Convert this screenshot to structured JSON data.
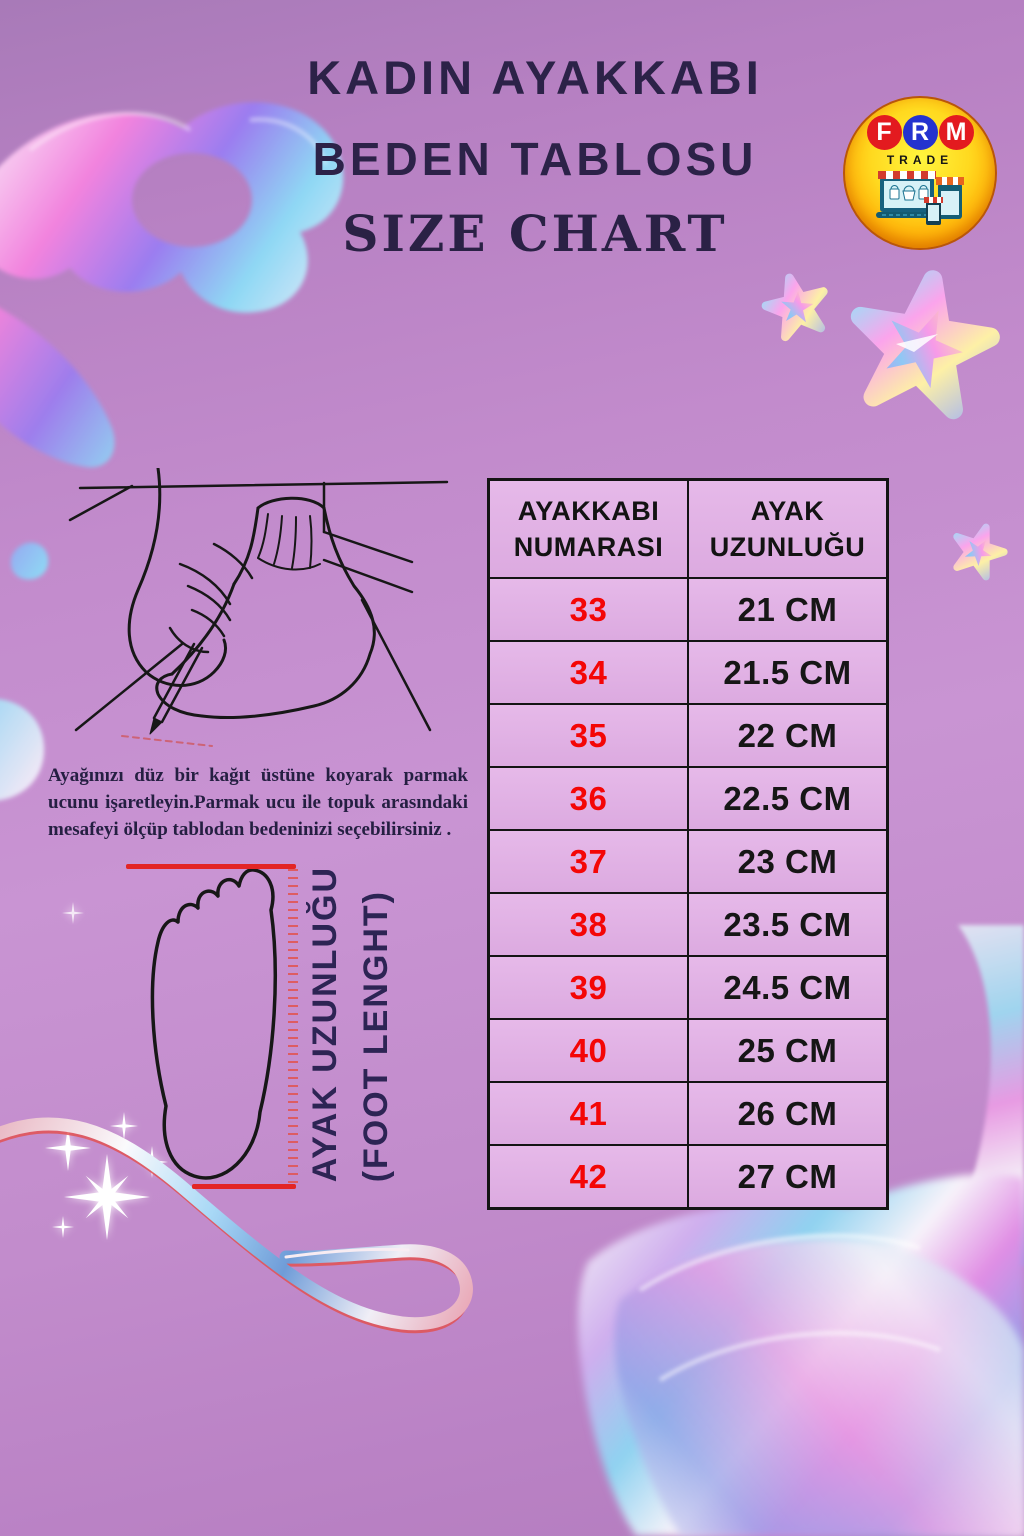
{
  "title": {
    "line1": "KADIN AYAKKABI",
    "line2": "BEDEN TABLOSU",
    "line3": "SIZE CHART"
  },
  "logo": {
    "letter1": "F",
    "letter2": "R",
    "letter3": "M",
    "subtitle": "TRADE"
  },
  "instructions": {
    "text": "Ayağınızı düz bir kağıt üstüne koyarak parmak ucunu işaretleyin.Parmak ucu ile topuk arasındaki mesafeyi ölçüp tablodan bedeninizi seçebilirsiniz ."
  },
  "foot_diagram": {
    "label_tr": "AYAK UZUNLUĞU",
    "label_en": "(FOOT LENGHT)"
  },
  "size_table": {
    "headers": [
      "AYAKKABI NUMARASI",
      "AYAK UZUNLUĞU"
    ]
  },
  "chart_data": {
    "type": "table",
    "title": "KADIN AYAKKABI BEDEN TABLOSU / SIZE CHART",
    "columns": [
      "AYAKKABI NUMARASI",
      "AYAK UZUNLUĞU"
    ],
    "rows": [
      [
        "33",
        "21 CM"
      ],
      [
        "34",
        "21.5 CM"
      ],
      [
        "35",
        "22 CM"
      ],
      [
        "36",
        "22.5 CM"
      ],
      [
        "37",
        "23 CM"
      ],
      [
        "38",
        "23.5 CM"
      ],
      [
        "39",
        "24.5 CM"
      ],
      [
        "40",
        "25 CM"
      ],
      [
        "41",
        "26 CM"
      ],
      [
        "42",
        "27 CM"
      ]
    ]
  },
  "colors": {
    "background_purple": "#c28ccc",
    "table_cell_pink": "#e3b4e7",
    "size_number_red": "#f40606",
    "title_navy": "#2c2248",
    "logo_yellow": "#ffd91f",
    "logo_red": "#e31a1f",
    "logo_blue": "#2433cf",
    "measure_line_red": "#e32525"
  }
}
